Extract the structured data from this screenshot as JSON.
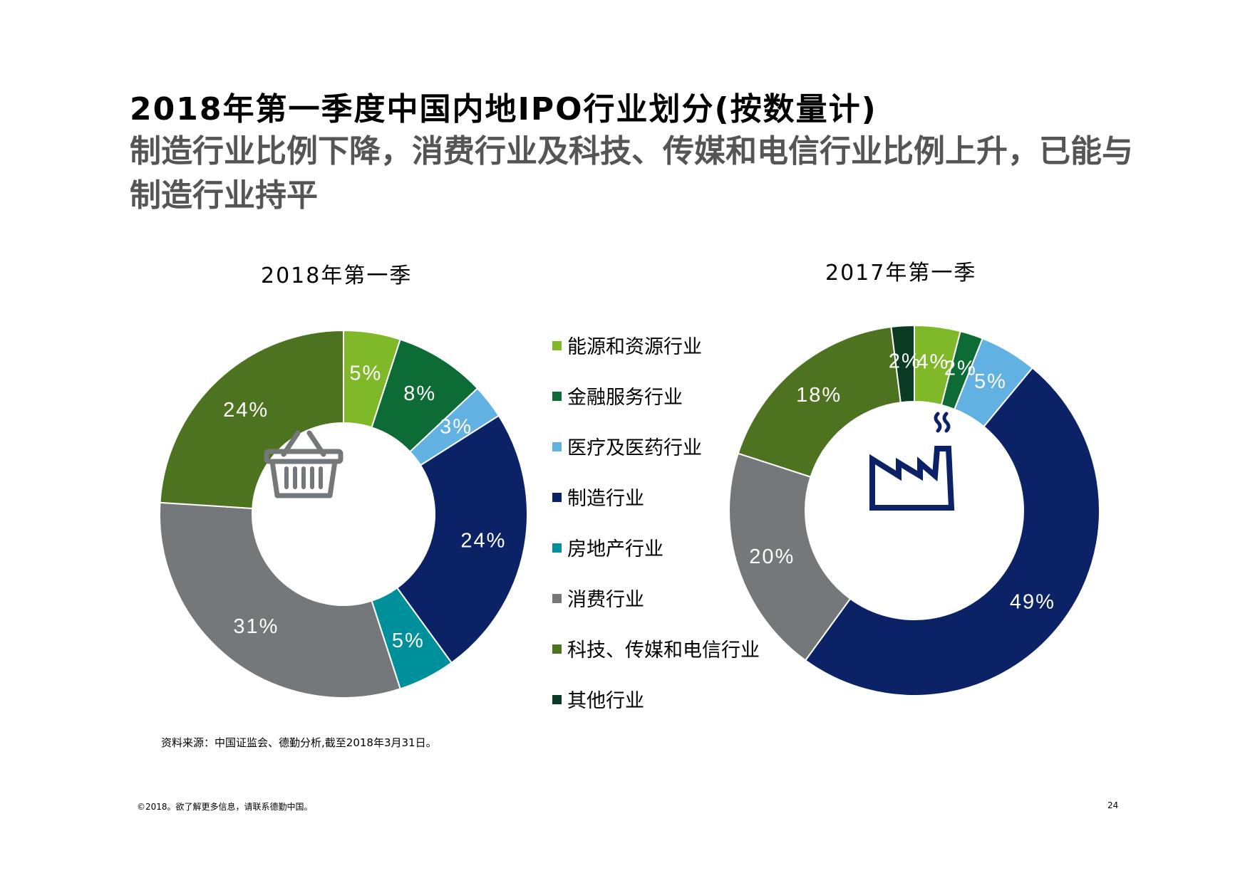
{
  "title": "2018年第一季度中国内地IPO行业划分(按数量计)",
  "subtitle": "制造行业比例下降，消费行业及科技、传媒和电信行业比例上升，已能与制造行业持平",
  "legend": [
    {
      "label": "能源和资源行业",
      "color": "#7fb829"
    },
    {
      "label": "金融服务行业",
      "color": "#0d6b35"
    },
    {
      "label": "医疗及医药行业",
      "color": "#62b1e3"
    },
    {
      "label": "制造行业",
      "color": "#0c2266"
    },
    {
      "label": "房地产行业",
      "color": "#00909c"
    },
    {
      "label": "消费行业",
      "color": "#75787b"
    },
    {
      "label": "科技、传媒和电信行业",
      "color": "#4e7320"
    },
    {
      "label": "其他行业",
      "color": "#0a3a22"
    }
  ],
  "chart_data": [
    {
      "type": "pie",
      "variant": "donut",
      "title": "2018年第一季",
      "center_icon": "shopping-basket-icon",
      "categories": [
        "能源和资源行业",
        "金融服务行业",
        "医疗及医药行业",
        "制造行业",
        "房地产行业",
        "消费行业",
        "科技、传媒和电信行业"
      ],
      "values": [
        5,
        8,
        3,
        24,
        5,
        31,
        24
      ],
      "labels": [
        "5%",
        "8%",
        "3%",
        "24%",
        "5%",
        "31%",
        "24%"
      ]
    },
    {
      "type": "pie",
      "variant": "donut",
      "title": "2017年第一季",
      "center_icon": "factory-icon",
      "categories": [
        "能源和资源行业",
        "金融服务行业",
        "医疗及医药行业",
        "制造行业",
        "消费行业",
        "科技、传媒和电信行业",
        "其他行业"
      ],
      "values": [
        4,
        2,
        5,
        49,
        20,
        18,
        2
      ],
      "labels": [
        "4%",
        "2%",
        "5%",
        "49%",
        "20%",
        "18%",
        "2%"
      ]
    }
  ],
  "source": "资料来源：中国证监会、德勤分析,截至2018年3月31日。",
  "footer": "©2018。欲了解更多信息，请联系德勤中国。",
  "page_number": "24"
}
